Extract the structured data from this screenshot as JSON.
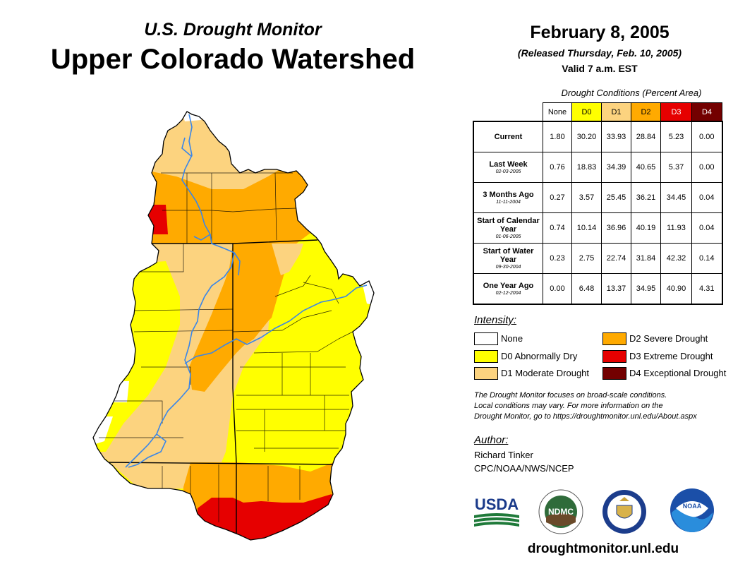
{
  "header": {
    "subtitle": "U.S. Drought Monitor",
    "title": "Upper Colorado Watershed"
  },
  "release": {
    "date": "February 8, 2005",
    "released": "(Released Thursday, Feb. 10, 2005)",
    "valid": "Valid 7 a.m. EST"
  },
  "table": {
    "caption": "Drought Conditions (Percent Area)",
    "columns": [
      "None",
      "D0",
      "D1",
      "D2",
      "D3",
      "D4"
    ],
    "column_colors": [
      "#ffffff",
      "#ffff00",
      "#fcd37f",
      "#ffaa00",
      "#e60000",
      "#730000"
    ],
    "rows": [
      {
        "label": "Current",
        "sub": "",
        "values": [
          "1.80",
          "30.20",
          "33.93",
          "28.84",
          "5.23",
          "0.00"
        ]
      },
      {
        "label": "Last Week",
        "sub": "02-03-2005",
        "values": [
          "0.76",
          "18.83",
          "34.39",
          "40.65",
          "5.37",
          "0.00"
        ]
      },
      {
        "label": "3 Months Ago",
        "sub": "11-11-2004",
        "values": [
          "0.27",
          "3.57",
          "25.45",
          "36.21",
          "34.45",
          "0.04"
        ]
      },
      {
        "label": "Start of Calendar Year",
        "sub": "01-06-2005",
        "values": [
          "0.74",
          "10.14",
          "36.96",
          "40.19",
          "11.93",
          "0.04"
        ]
      },
      {
        "label": "Start of Water Year",
        "sub": "09-30-2004",
        "values": [
          "0.23",
          "2.75",
          "22.74",
          "31.84",
          "42.32",
          "0.14"
        ]
      },
      {
        "label": "One Year Ago",
        "sub": "02-12-2004",
        "values": [
          "0.00",
          "6.48",
          "13.37",
          "34.95",
          "40.90",
          "4.31"
        ]
      }
    ]
  },
  "legend": {
    "title": "Intensity:",
    "items": [
      {
        "label": "None",
        "color": "#ffffff"
      },
      {
        "label": "D0 Abnormally Dry",
        "color": "#ffff00"
      },
      {
        "label": "D1 Moderate Drought",
        "color": "#fcd37f"
      },
      {
        "label": "D2 Severe Drought",
        "color": "#ffaa00"
      },
      {
        "label": "D3 Extreme Drought",
        "color": "#e60000"
      },
      {
        "label": "D4 Exceptional Drought",
        "color": "#730000"
      }
    ]
  },
  "disclaimer": {
    "line1": "The Drought Monitor focuses on broad-scale conditions.",
    "line2": "Local conditions may vary. For more information on the",
    "line3": "Drought Monitor, go to https://droughtmonitor.unl.edu/About.aspx"
  },
  "author": {
    "label": "Author:",
    "name": "Richard Tinker",
    "org": "CPC/NOAA/NWS/NCEP"
  },
  "logos": {
    "usda": "USDA",
    "ndmc": "NDMC",
    "noaa": "NOAA"
  },
  "website": "droughtmonitor.unl.edu",
  "colors": {
    "river": "#3a86e8",
    "boundary": "#000000"
  }
}
